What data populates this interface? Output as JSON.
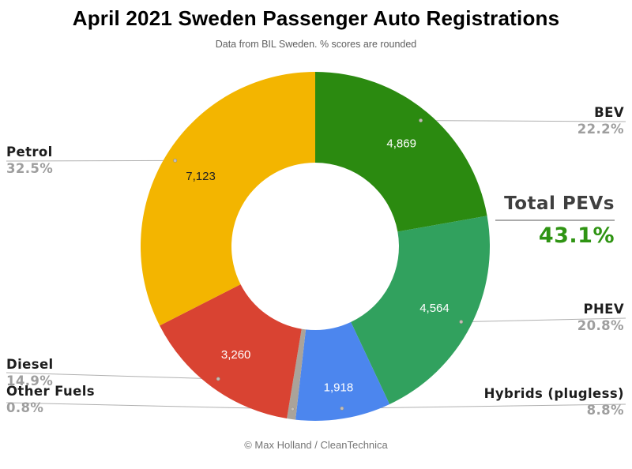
{
  "title": "April 2021 Sweden Passenger Auto Registrations",
  "subtitle": "Data from BIL Sweden. % scores are rounded",
  "footer": "© Max Holland / CleanTechnica",
  "total_pevs": {
    "label": "Total PEVs",
    "value": "43.1%",
    "color": "#2f9413"
  },
  "colors": {
    "label_text": "#1d1d1d",
    "pct_text": "#9e9e9e",
    "leader_line": "#b0b0b0",
    "leader_dot": "#c4beb6"
  },
  "chart_data": {
    "type": "pie",
    "donut": true,
    "title": "April 2021 Sweden Passenger Auto Registrations",
    "legend_position": "none",
    "slices": [
      {
        "id": "bev",
        "label": "BEV",
        "pct": 22.2,
        "pct_label": "22.2%",
        "value": 4869,
        "value_label": "4,869",
        "color": "#2b8a10",
        "value_text_color": "#ffffff",
        "side": "right"
      },
      {
        "id": "phev",
        "label": "PHEV",
        "pct": 20.8,
        "pct_label": "20.8%",
        "value": 4564,
        "value_label": "4,564",
        "color": "#31a15e",
        "value_text_color": "#ffffff",
        "side": "right"
      },
      {
        "id": "hybrids",
        "label": "Hybrids (plugless)",
        "pct": 8.8,
        "pct_label": "8.8%",
        "value": 1918,
        "value_label": "1,918",
        "color": "#4c86ee",
        "value_text_color": "#ffffff",
        "side": "right"
      },
      {
        "id": "other",
        "label": "Other Fuels",
        "pct": 0.8,
        "pct_label": "0.8%",
        "color": "#aaa39a",
        "side": "left"
      },
      {
        "id": "diesel",
        "label": "Diesel",
        "pct": 14.9,
        "pct_label": "14.9%",
        "value": 3260,
        "value_label": "3,260",
        "color": "#d94332",
        "value_text_color": "#ffffff",
        "side": "left"
      },
      {
        "id": "petrol",
        "label": "Petrol",
        "pct": 32.5,
        "pct_label": "32.5%",
        "value": 7123,
        "value_label": "7,123",
        "color": "#f3b500",
        "value_text_color": "#222222",
        "side": "left"
      }
    ]
  }
}
